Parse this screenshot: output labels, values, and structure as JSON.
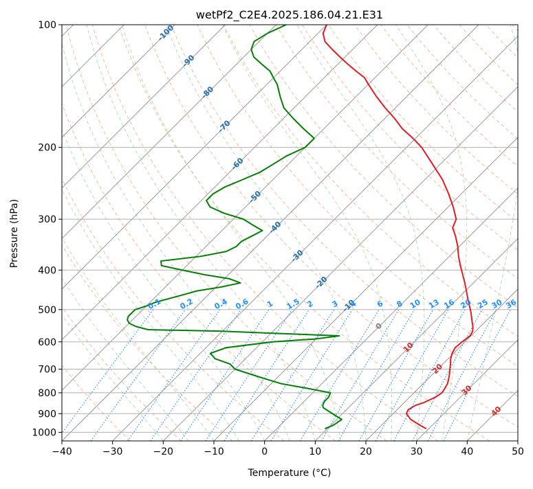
{
  "chart_data": {
    "type": "line",
    "title": "wetPf2_C2E4.2025.186.04.21.E31",
    "xlabel": "Temperature (°C)",
    "ylabel": "Pressure (hPa)",
    "xlim": [
      -40,
      50
    ],
    "ylim": [
      1050,
      100
    ],
    "y_scale": "log",
    "x_ticks": [
      -40,
      -30,
      -20,
      -10,
      0,
      10,
      20,
      30,
      40,
      50
    ],
    "y_ticks": [
      100,
      200,
      300,
      400,
      500,
      600,
      700,
      800,
      900,
      1000
    ],
    "skew": 45,
    "grid": true,
    "series": [
      {
        "color": "#e41a1c",
        "pressure": [
          980,
          960,
          930,
          900,
          880,
          860,
          845,
          830,
          820,
          800,
          780,
          760,
          740,
          720,
          700,
          680,
          660,
          640,
          620,
          600,
          580,
          565,
          550,
          530,
          510,
          490,
          470,
          450,
          430,
          410,
          390,
          370,
          350,
          330,
          315,
          300,
          280,
          260,
          240,
          220,
          200,
          190,
          180,
          170,
          160,
          150,
          140,
          135,
          130,
          125,
          120,
          115,
          110,
          105,
          100
        ],
        "values": [
          29.5,
          27.5,
          24.6,
          22.6,
          22.2,
          22.7,
          23.9,
          24.6,
          25.1,
          25.5,
          25.2,
          24.8,
          24.1,
          23.3,
          22.4,
          21.5,
          20.5,
          19.7,
          19.2,
          19.4,
          19.8,
          19.4,
          18.5,
          17.0,
          15.5,
          13.8,
          12.0,
          10.2,
          8.3,
          6.2,
          4.0,
          1.8,
          -0.3,
          -2.8,
          -5.0,
          -6.0,
          -9.0,
          -12.5,
          -16.5,
          -21.5,
          -27.0,
          -30.5,
          -34.5,
          -38.0,
          -42.0,
          -46.0,
          -50.0,
          -52.0,
          -55.0,
          -58.0,
          -61.0,
          -64.0,
          -67.0,
          -69.0,
          -70.0
        ]
      },
      {
        "color": "#008000",
        "pressure": [
          980,
          960,
          930,
          910,
          890,
          870,
          860,
          840,
          820,
          800,
          780,
          760,
          740,
          720,
          700,
          680,
          660,
          640,
          620,
          600,
          590,
          580,
          575,
          565,
          560,
          550,
          540,
          530,
          520,
          510,
          500,
          490,
          480,
          470,
          460,
          450,
          440,
          430,
          420,
          410,
          400,
          390,
          380,
          370,
          360,
          350,
          340,
          330,
          320,
          310,
          300,
          290,
          280,
          270,
          260,
          250,
          240,
          230,
          220,
          210,
          200,
          190,
          180,
          170,
          160,
          150,
          140,
          135,
          130,
          125,
          120,
          115,
          110,
          105,
          100
        ],
        "values": [
          9.5,
          10.5,
          11.0,
          9.0,
          7.0,
          5.0,
          4.5,
          4.0,
          4.0,
          3.5,
          -2.0,
          -8.0,
          -12.0,
          -16.0,
          -20.0,
          -22.0,
          -26.0,
          -28.0,
          -26.0,
          -18.0,
          -10.0,
          -6.0,
          -14.0,
          -30.0,
          -45.0,
          -48.0,
          -50.0,
          -51.0,
          -51.5,
          -51.5,
          -51.5,
          -50.0,
          -49.0,
          -47.0,
          -45.0,
          -43.0,
          -39.0,
          -36.0,
          -39.0,
          -45.0,
          -50.0,
          -55.0,
          -56.0,
          -49.0,
          -45.0,
          -44.0,
          -44.0,
          -43.0,
          -42.0,
          -45.0,
          -48.0,
          -53.0,
          -57.0,
          -59.0,
          -59.0,
          -58.0,
          -56.0,
          -54.0,
          -53.0,
          -52.0,
          -50.0,
          -50.0,
          -54.0,
          -58.0,
          -62.0,
          -65.0,
          -68.0,
          -70.0,
          -72.0,
          -75.0,
          -78.0,
          -80.0,
          -81.0,
          -80.0,
          -78.0
        ]
      }
    ],
    "isotherm_labels": [
      "-100",
      "-90",
      "-80",
      "-70",
      "-60",
      "-50",
      "-40",
      "-30",
      "-20",
      "-10",
      "0",
      "10",
      "20",
      "30",
      "40"
    ],
    "isotherm_label_values": [
      -100,
      -90,
      -80,
      -70,
      -60,
      -50,
      -40,
      -30,
      -20,
      -10,
      0,
      10,
      20,
      30,
      40
    ],
    "mixing_ratio_labels": [
      "0.1",
      "0.2",
      "0.4",
      "0.6",
      "1",
      "1.5",
      "2",
      "3",
      "4",
      "6",
      "8",
      "10",
      "13",
      "16",
      "20",
      "25",
      "30",
      "36"
    ],
    "mixing_ratio_values": [
      0.1,
      0.2,
      0.4,
      0.6,
      1,
      1.5,
      2,
      3,
      4,
      6,
      8,
      10,
      13,
      16,
      20,
      25,
      30,
      36
    ],
    "colors": {
      "temperature": "#e41a1c",
      "dewpoint": "#008000",
      "isotherm": "#999999",
      "dry_adiabat": "#f4a582",
      "moist_adiabat": "#a6d8a6",
      "mixing_ratio": "#1e90ff",
      "isotherm_label_negative": "#1f6fb2",
      "isotherm_label_zero": "#808080",
      "isotherm_label_positive": "#d62728"
    }
  }
}
